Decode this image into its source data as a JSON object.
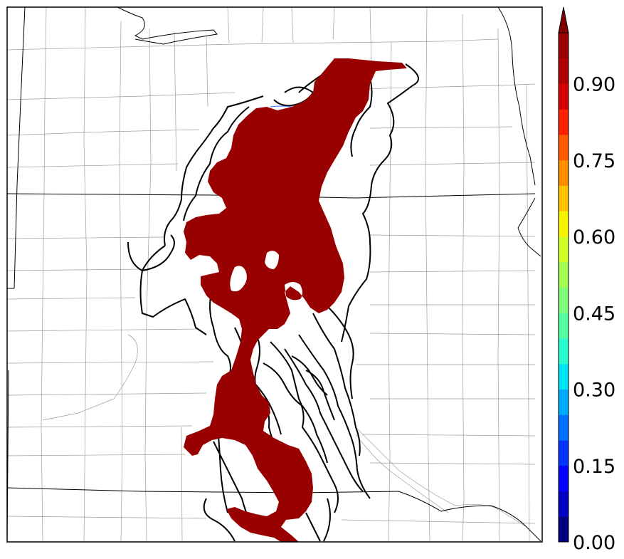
{
  "colorbar": {
    "tick_labels": [
      "0.00",
      "0.15",
      "0.30",
      "0.45",
      "0.60",
      "0.75",
      "0.90"
    ],
    "tick_values": [
      0.0,
      0.15,
      0.3,
      0.45,
      0.6,
      0.75,
      0.9
    ],
    "range": [
      0.0,
      1.0
    ],
    "levels": 20,
    "extend": "max",
    "colors": [
      "#00007f",
      "#0000c4",
      "#0000ff",
      "#0034ff",
      "#0070ff",
      "#00acff",
      "#00e4f7",
      "#29ffce",
      "#55ff9f",
      "#80ff7c",
      "#a4ff55",
      "#ceff29",
      "#f7f400",
      "#ffc400",
      "#ff8d00",
      "#ff5a00",
      "#ff2000",
      "#d70000",
      "#b00000",
      "#9a0000"
    ],
    "extend_color": "#800000"
  },
  "map": {
    "filled_field_color": "#990000",
    "contour_color": "#000000",
    "state_line_color": "#000000",
    "county_line_color": "#8c8c8c"
  }
}
